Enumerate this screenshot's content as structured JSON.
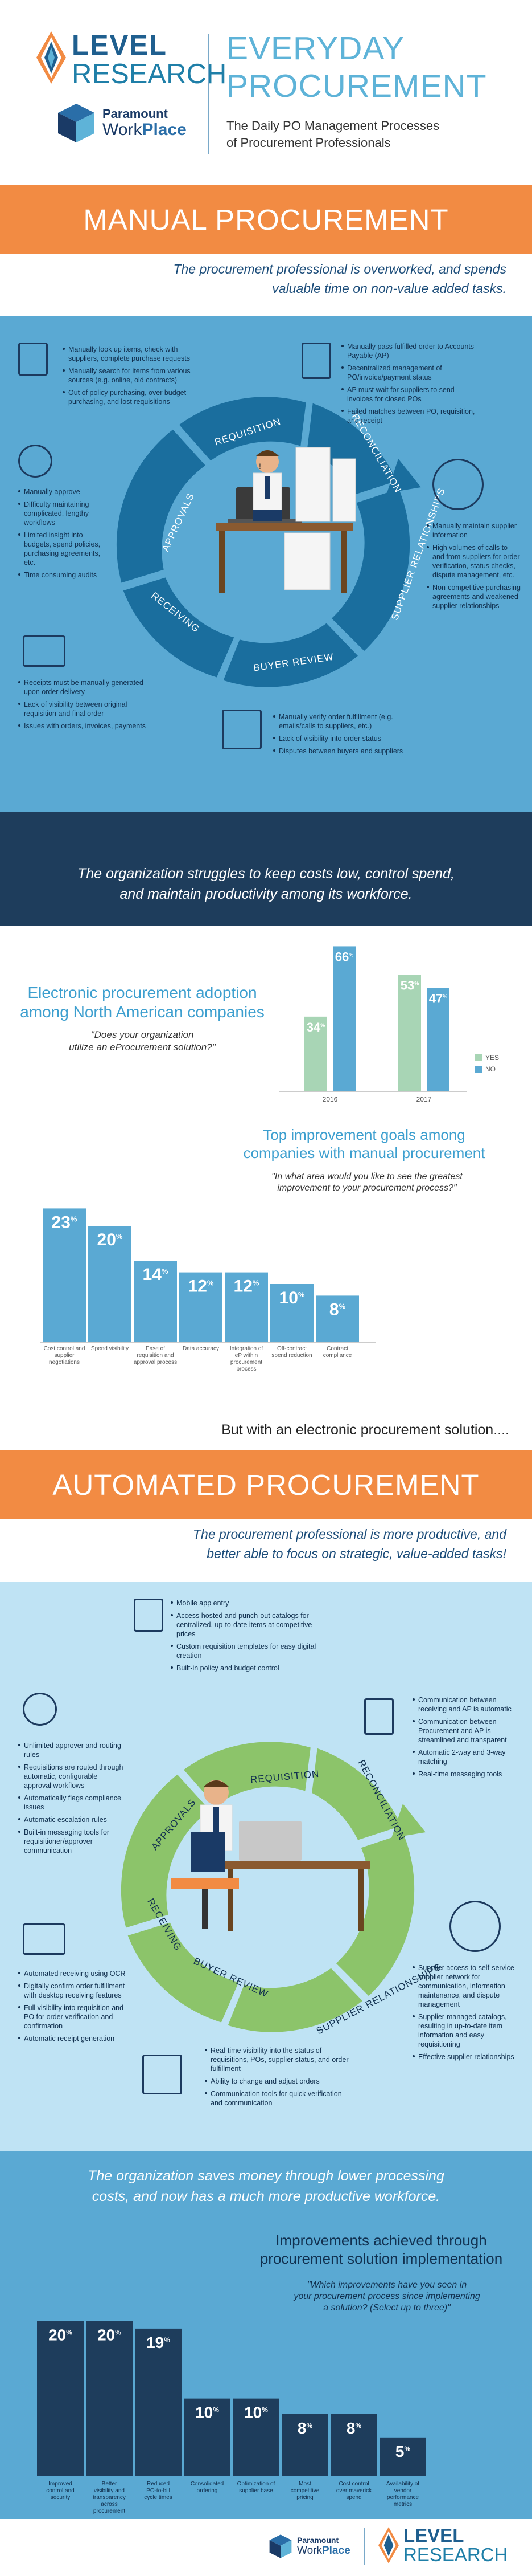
{
  "header": {
    "level_line1": "LEVEL",
    "level_line2": "RESEARCH",
    "paramount_line1": "Paramount",
    "paramount_work": "Work",
    "paramount_place": "Place",
    "title_line1": "EVERYDAY",
    "title_line2": "PROCUREMENT",
    "subtitle_line1": "The Daily PO Management Processes",
    "subtitle_line2": "of Procurement Professionals"
  },
  "manual": {
    "band_title": "MANUAL PROCUREMENT",
    "intro_line1": "The procurement professional is overworked, and spends",
    "intro_line2": "valuable time on non-value added tasks.",
    "wheel_labels": [
      "REQUISITION",
      "RECONCILIATION",
      "SUPPLIER RELATIONSHIPS",
      "BUYER REVIEW",
      "RECEIVING",
      "APPROVALS"
    ],
    "requisition_bullets": [
      "Manually look up items, check with suppliers, complete purchase requests",
      "Manually search for items from various sources (e.g. online, old contracts)",
      "Out of policy purchasing, over budget purchasing, and lost requisitions"
    ],
    "reconciliation_bullets": [
      "Manually pass fulfilled order to Accounts Payable (AP)",
      "Decentralized management of PO/invoice/payment status",
      "AP must wait for suppliers to send invoices for closed POs",
      "Failed matches between PO, requisition, and receipt"
    ],
    "approvals_bullets": [
      "Manually approve",
      "Difficulty maintaining complicated, lengthy workflows",
      "Limited insight into budgets, spend policies, purchasing agreements, etc.",
      "Time consuming audits"
    ],
    "supplier_bullets": [
      "Manually maintain supplier information",
      "High volumes of calls to and from suppliers for order verification, status checks, dispute management, etc.",
      "Non-competitive purchasing agreements and weakened supplier relationships"
    ],
    "receiving_bullets": [
      "Receipts must be manually generated upon order delivery",
      "Lack of visibility between original requisition and final order",
      "Issues with orders, invoices, payments"
    ],
    "buyer_bullets": [
      "Manually verify order fulfillment (e.g. emails/calls to suppliers, etc.)",
      "Lack of visibility into order status",
      "Disputes between buyers and suppliers"
    ]
  },
  "stats": {
    "quote_line1": "The organization struggles to keep costs low, control spend,",
    "quote_line2": "and maintain productivity among its workforce.",
    "chart_title_line1": "Electronic procurement adoption",
    "chart_title_line2": "among North American companies",
    "question_line1": "\"Does your organization",
    "question_line2": "utilize an eProcurement solution?\"",
    "pct": "%"
  },
  "goals": {
    "title_line1": "Top improvement goals among",
    "title_line2": "companies with manual procurement",
    "question_line1": "\"In what area would you like to see the greatest",
    "question_line2": "improvement to your procurement process?\"",
    "but_text": "But with an electronic procurement solution...."
  },
  "auto": {
    "band_title": "AUTOMATED PROCUREMENT",
    "intro_line1": "The procurement professional is more productive, and",
    "intro_line2": "better able to focus on strategic, value-added tasks!",
    "wheel_labels": [
      "REQUISITION",
      "RECONCILIATION",
      "SUPPLIER RELATIONSHIPS",
      "BUYER REVIEW",
      "RECEIVING",
      "APPROVALS"
    ],
    "requisition_bullets": [
      "Mobile app entry",
      "Access hosted and punch-out catalogs for centralized, up-to-date items at competitive prices",
      "Custom requisition templates for easy digital creation",
      "Built-in policy and budget control"
    ],
    "reconciliation_bullets": [
      "Communication between receiving and AP is automatic",
      "Communication between Procurement and AP is streamlined and transparent",
      "Automatic 2-way and 3-way matching",
      "Real-time messaging tools"
    ],
    "approvals_bullets": [
      "Unlimited approver and routing rules",
      "Requisitions are routed through automatic, configurable approval workflows",
      "Automatically flags compliance issues",
      "Automatic escalation rules",
      "Built-in messaging tools for requisitioner/approver communication"
    ],
    "supplier_bullets": [
      "Supplier access to self-service supplier network for communication, information maintenance, and dispute management",
      "Supplier-managed catalogs, resulting in up-to-date item information and easy requisitioning",
      "Effective supplier relationships"
    ],
    "receiving_bullets": [
      "Automated receiving using OCR",
      "Digitally confirm order fulfillment with desktop receiving features",
      "Full visibility into requisition and PO for order verification and confirmation",
      "Automatic receipt generation"
    ],
    "buyer_bullets": [
      "Real-time visibility into the status of requisitions, POs, supplier status, and order fulfillment",
      "Ability to change and adjust orders",
      "Communication tools for quick verification and communication"
    ]
  },
  "final": {
    "quote_line1": "The organization saves money through lower processing",
    "quote_line2": "costs, and now has a much more productive workforce.",
    "title_line1": "Improvements achieved through",
    "title_line2": "procurement solution implementation",
    "question_line1": "\"Which improvements have you seen in",
    "question_line2": "your procurement process since implementing",
    "question_line3": "a solution? (Select up to three)\""
  },
  "colors": {
    "orange": "#f28b43",
    "blue": "#5aa9d3",
    "navy": "#1e3d5c",
    "lightblue": "#bfe3f4",
    "yes": "#a8d5b5",
    "no": "#5aa9d3"
  },
  "chart_data": [
    {
      "type": "bar",
      "title": "Electronic procurement adoption among North American companies",
      "categories": [
        "2016",
        "2017"
      ],
      "series": [
        {
          "name": "YES",
          "values": [
            34,
            53
          ]
        },
        {
          "name": "NO",
          "values": [
            66,
            47
          ]
        }
      ],
      "ylim": [
        0,
        70
      ],
      "legend": "right"
    },
    {
      "type": "bar",
      "title": "Top improvement goals among companies with manual procurement",
      "categories": [
        "Cost control and supplier negotiations",
        "Spend visibility",
        "Ease of requisition and approval process",
        "Data accuracy",
        "Integration of eP within procurement process",
        "Off-contract spend reduction",
        "Contract compliance"
      ],
      "values": [
        23,
        20,
        14,
        12,
        12,
        10,
        8
      ],
      "ylim": [
        0,
        25
      ]
    },
    {
      "type": "bar",
      "title": "Improvements achieved through procurement solution implementation",
      "categories": [
        "Improved control and security",
        "Better visibility and transparency across procurement",
        "Reduced PO-to-bill cycle times",
        "Consolidated ordering",
        "Optimization of supplier base",
        "Most competitive pricing",
        "Cost control over maverick spend",
        "Availability of vendor performance metrics"
      ],
      "values": [
        20,
        20,
        19,
        10,
        10,
        8,
        8,
        5
      ],
      "ylim": [
        0,
        22
      ]
    }
  ]
}
